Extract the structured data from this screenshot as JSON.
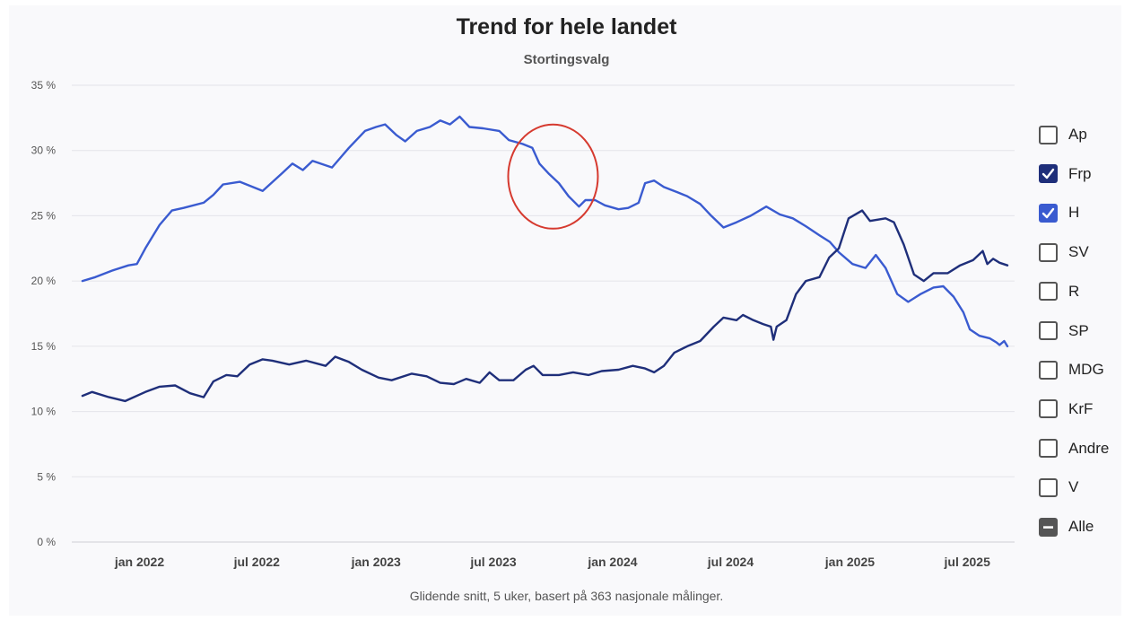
{
  "chart_data": {
    "type": "line",
    "title": "Trend for hele landet",
    "subtitle": "Stortingsvalg",
    "footnote": "Glidende snitt, 5 uker, basert på 363 nasjonale målinger.",
    "ylim": [
      0,
      35
    ],
    "yticks": [
      "0 %",
      "5 %",
      "10 %",
      "15 %",
      "20 %",
      "25 %",
      "30 %",
      "35 %"
    ],
    "xlim": [
      "2021-10-01",
      "2025-09-01"
    ],
    "xticks": [
      {
        "date": "2022-01-01",
        "label": "jan 2022"
      },
      {
        "date": "2022-07-01",
        "label": "jul 2022"
      },
      {
        "date": "2023-01-01",
        "label": "jan 2023"
      },
      {
        "date": "2023-07-01",
        "label": "jul 2023"
      },
      {
        "date": "2024-01-01",
        "label": "jan 2024"
      },
      {
        "date": "2024-07-01",
        "label": "jul 2024"
      },
      {
        "date": "2025-01-01",
        "label": "jan 2025"
      },
      {
        "date": "2025-07-01",
        "label": "jul 2025"
      }
    ],
    "grid": true,
    "legend_position": "right",
    "series": [
      {
        "name": "H",
        "color": "#3a5bd0",
        "points": [
          [
            "2021-10-05",
            20.0
          ],
          [
            "2021-10-25",
            20.3
          ],
          [
            "2021-11-20",
            20.8
          ],
          [
            "2021-12-15",
            21.2
          ],
          [
            "2021-12-28",
            21.3
          ],
          [
            "2022-01-10",
            22.5
          ],
          [
            "2022-02-01",
            24.3
          ],
          [
            "2022-02-20",
            25.4
          ],
          [
            "2022-03-10",
            25.6
          ],
          [
            "2022-04-10",
            26.0
          ],
          [
            "2022-04-25",
            26.6
          ],
          [
            "2022-05-10",
            27.4
          ],
          [
            "2022-06-05",
            27.6
          ],
          [
            "2022-06-25",
            27.2
          ],
          [
            "2022-07-10",
            26.9
          ],
          [
            "2022-08-10",
            28.3
          ],
          [
            "2022-08-25",
            29.0
          ],
          [
            "2022-09-10",
            28.5
          ],
          [
            "2022-09-25",
            29.2
          ],
          [
            "2022-10-25",
            28.7
          ],
          [
            "2022-11-20",
            30.2
          ],
          [
            "2022-12-15",
            31.5
          ],
          [
            "2023-01-01",
            31.8
          ],
          [
            "2023-01-15",
            32.0
          ],
          [
            "2023-02-01",
            31.2
          ],
          [
            "2023-02-15",
            30.7
          ],
          [
            "2023-03-05",
            31.5
          ],
          [
            "2023-03-25",
            31.8
          ],
          [
            "2023-04-10",
            32.3
          ],
          [
            "2023-04-25",
            32.0
          ],
          [
            "2023-05-10",
            32.6
          ],
          [
            "2023-05-25",
            31.8
          ],
          [
            "2023-06-15",
            31.7
          ],
          [
            "2023-07-10",
            31.5
          ],
          [
            "2023-07-25",
            30.8
          ],
          [
            "2023-08-15",
            30.5
          ],
          [
            "2023-08-30",
            30.2
          ],
          [
            "2023-09-10",
            29.0
          ],
          [
            "2023-09-25",
            28.2
          ],
          [
            "2023-10-10",
            27.5
          ],
          [
            "2023-10-25",
            26.5
          ],
          [
            "2023-11-10",
            25.7
          ],
          [
            "2023-11-20",
            26.2
          ],
          [
            "2023-12-05",
            26.2
          ],
          [
            "2023-12-20",
            25.8
          ],
          [
            "2024-01-10",
            25.5
          ],
          [
            "2024-01-25",
            25.6
          ],
          [
            "2024-02-10",
            26.0
          ],
          [
            "2024-02-20",
            27.5
          ],
          [
            "2024-03-05",
            27.7
          ],
          [
            "2024-03-20",
            27.2
          ],
          [
            "2024-04-10",
            26.8
          ],
          [
            "2024-04-25",
            26.5
          ],
          [
            "2024-05-15",
            25.9
          ],
          [
            "2024-06-01",
            25.0
          ],
          [
            "2024-06-20",
            24.1
          ],
          [
            "2024-07-10",
            24.5
          ],
          [
            "2024-08-01",
            25.0
          ],
          [
            "2024-08-25",
            25.7
          ],
          [
            "2024-09-15",
            25.1
          ],
          [
            "2024-10-05",
            24.8
          ],
          [
            "2024-10-25",
            24.2
          ],
          [
            "2024-11-15",
            23.5
          ],
          [
            "2024-12-01",
            23.0
          ],
          [
            "2024-12-15",
            22.2
          ],
          [
            "2025-01-05",
            21.3
          ],
          [
            "2025-01-25",
            21.0
          ],
          [
            "2025-02-10",
            22.0
          ],
          [
            "2025-02-25",
            21.0
          ],
          [
            "2025-03-15",
            19.0
          ],
          [
            "2025-04-01",
            18.4
          ],
          [
            "2025-04-20",
            19.0
          ],
          [
            "2025-05-10",
            19.5
          ],
          [
            "2025-05-25",
            19.6
          ],
          [
            "2025-06-10",
            18.8
          ],
          [
            "2025-06-25",
            17.6
          ],
          [
            "2025-07-05",
            16.3
          ],
          [
            "2025-07-20",
            15.8
          ],
          [
            "2025-08-05",
            15.6
          ],
          [
            "2025-08-15",
            15.3
          ],
          [
            "2025-08-20",
            15.1
          ],
          [
            "2025-08-27",
            15.4
          ],
          [
            "2025-09-01",
            15.0
          ]
        ]
      },
      {
        "name": "Frp",
        "color": "#1f2f7a",
        "points": [
          [
            "2021-10-05",
            11.2
          ],
          [
            "2021-10-20",
            11.5
          ],
          [
            "2021-11-15",
            11.1
          ],
          [
            "2021-12-10",
            10.8
          ],
          [
            "2022-01-10",
            11.5
          ],
          [
            "2022-02-01",
            11.9
          ],
          [
            "2022-02-25",
            12.0
          ],
          [
            "2022-03-20",
            11.4
          ],
          [
            "2022-04-10",
            11.1
          ],
          [
            "2022-04-25",
            12.3
          ],
          [
            "2022-05-15",
            12.8
          ],
          [
            "2022-06-01",
            12.7
          ],
          [
            "2022-06-20",
            13.6
          ],
          [
            "2022-07-10",
            14.0
          ],
          [
            "2022-07-25",
            13.9
          ],
          [
            "2022-08-20",
            13.6
          ],
          [
            "2022-09-15",
            13.9
          ],
          [
            "2022-10-15",
            13.5
          ],
          [
            "2022-10-30",
            14.2
          ],
          [
            "2022-11-20",
            13.8
          ],
          [
            "2022-12-10",
            13.2
          ],
          [
            "2023-01-05",
            12.6
          ],
          [
            "2023-01-25",
            12.4
          ],
          [
            "2023-02-25",
            12.9
          ],
          [
            "2023-03-20",
            12.7
          ],
          [
            "2023-04-10",
            12.2
          ],
          [
            "2023-05-01",
            12.1
          ],
          [
            "2023-05-20",
            12.5
          ],
          [
            "2023-06-10",
            12.2
          ],
          [
            "2023-06-25",
            13.0
          ],
          [
            "2023-07-10",
            12.4
          ],
          [
            "2023-08-01",
            12.4
          ],
          [
            "2023-08-20",
            13.2
          ],
          [
            "2023-09-01",
            13.5
          ],
          [
            "2023-09-15",
            12.8
          ],
          [
            "2023-10-10",
            12.8
          ],
          [
            "2023-11-01",
            13.0
          ],
          [
            "2023-11-25",
            12.8
          ],
          [
            "2023-12-15",
            13.1
          ],
          [
            "2024-01-10",
            13.2
          ],
          [
            "2024-02-01",
            13.5
          ],
          [
            "2024-02-20",
            13.3
          ],
          [
            "2024-03-05",
            13.0
          ],
          [
            "2024-03-20",
            13.5
          ],
          [
            "2024-04-05",
            14.5
          ],
          [
            "2024-04-25",
            15.0
          ],
          [
            "2024-05-15",
            15.4
          ],
          [
            "2024-06-05",
            16.5
          ],
          [
            "2024-06-20",
            17.2
          ],
          [
            "2024-07-10",
            17.0
          ],
          [
            "2024-07-20",
            17.4
          ],
          [
            "2024-08-05",
            17.0
          ],
          [
            "2024-08-20",
            16.7
          ],
          [
            "2024-09-01",
            16.5
          ],
          [
            "2024-09-05",
            15.5
          ],
          [
            "2024-09-10",
            16.5
          ],
          [
            "2024-09-25",
            17.0
          ],
          [
            "2024-10-10",
            19.0
          ],
          [
            "2024-10-25",
            20.0
          ],
          [
            "2024-11-15",
            20.3
          ],
          [
            "2024-11-30",
            21.8
          ],
          [
            "2024-12-15",
            22.5
          ],
          [
            "2024-12-30",
            24.8
          ],
          [
            "2025-01-20",
            25.4
          ],
          [
            "2025-02-01",
            24.6
          ],
          [
            "2025-02-25",
            24.8
          ],
          [
            "2025-03-10",
            24.5
          ],
          [
            "2025-03-25",
            22.8
          ],
          [
            "2025-04-10",
            20.5
          ],
          [
            "2025-04-25",
            20.0
          ],
          [
            "2025-05-10",
            20.6
          ],
          [
            "2025-06-01",
            20.6
          ],
          [
            "2025-06-20",
            21.2
          ],
          [
            "2025-07-10",
            21.6
          ],
          [
            "2025-07-25",
            22.3
          ],
          [
            "2025-08-01",
            21.3
          ],
          [
            "2025-08-10",
            21.7
          ],
          [
            "2025-08-20",
            21.4
          ],
          [
            "2025-09-01",
            21.2
          ]
        ]
      }
    ],
    "annotations": [
      {
        "type": "ellipse",
        "color": "#d63a2f",
        "cx_date": "2023-10-01",
        "cy": 28.0
      }
    ]
  },
  "legend": {
    "items": [
      {
        "label": "Ap",
        "checked": false
      },
      {
        "label": "Frp",
        "checked": true,
        "color": "#1f2f7a"
      },
      {
        "label": "H",
        "checked": true,
        "color": "#3a5bd0"
      },
      {
        "label": "SV",
        "checked": false
      },
      {
        "label": "R",
        "checked": false
      },
      {
        "label": "SP",
        "checked": false
      },
      {
        "label": "MDG",
        "checked": false
      },
      {
        "label": "KrF",
        "checked": false
      },
      {
        "label": "Andre",
        "checked": false
      },
      {
        "label": "V",
        "checked": false
      },
      {
        "label": "Alle",
        "checked": "indeterminate",
        "color": "#555555"
      }
    ]
  }
}
